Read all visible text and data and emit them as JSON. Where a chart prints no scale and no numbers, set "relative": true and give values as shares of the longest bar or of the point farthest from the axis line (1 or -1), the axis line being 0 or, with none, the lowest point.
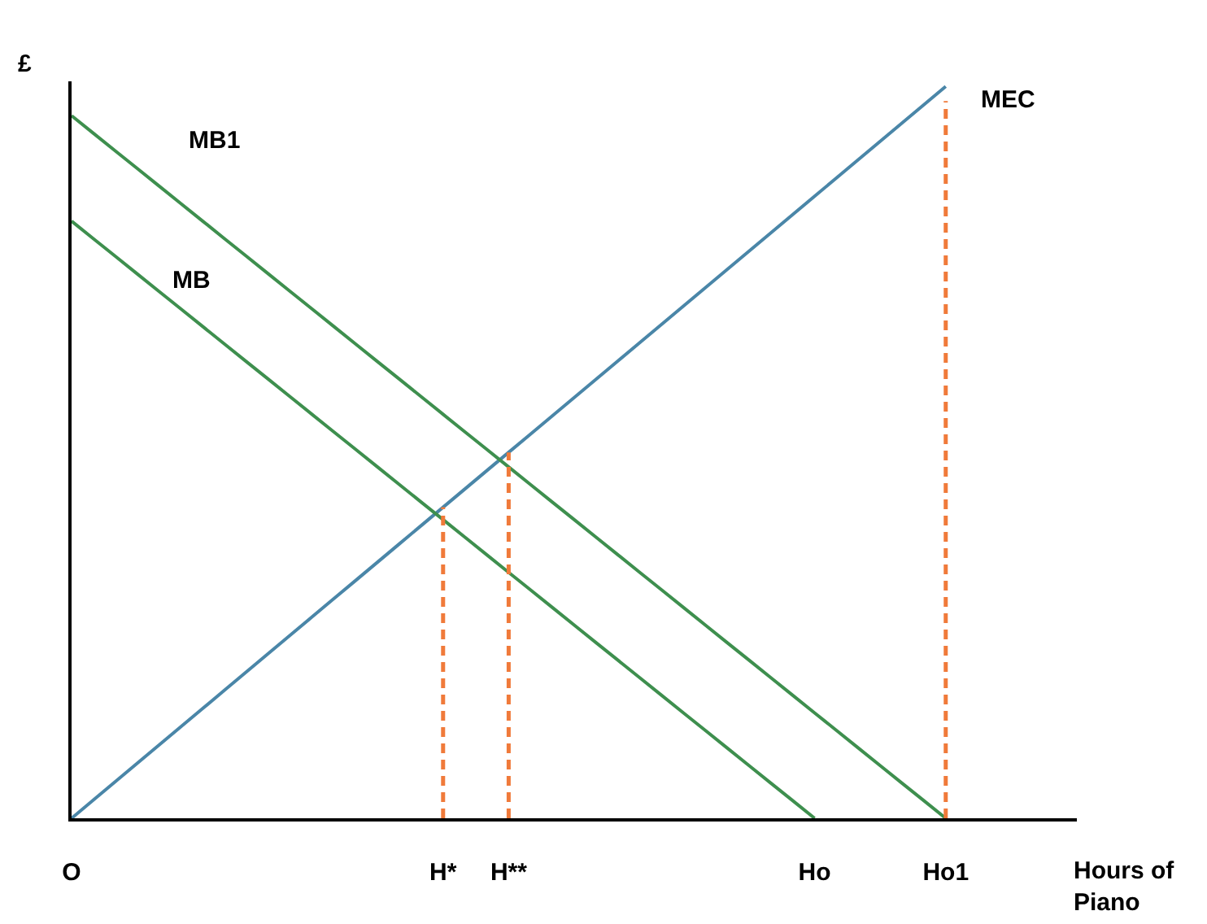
{
  "chart_data": {
    "type": "line",
    "relative": true,
    "xlabel": "Hours of Piano",
    "ylabel": "£",
    "legend": false,
    "categories": [
      "O",
      null,
      null,
      null,
      null,
      null,
      null,
      null,
      null,
      null,
      null,
      null,
      null,
      null,
      null,
      null,
      null,
      "H*",
      null,
      null,
      "H**",
      null,
      null,
      null,
      null,
      null,
      null,
      null,
      null,
      null,
      null,
      null,
      null,
      null,
      "Ho",
      null,
      null,
      null,
      null,
      null,
      "Ho1",
      null,
      null,
      null,
      null,
      null,
      null
    ],
    "series": [
      {
        "name": "MEC",
        "color": "#4a86a8",
        "values": [
          0,
          0.025,
          0.05,
          0.075,
          0.1,
          0.125,
          0.15,
          0.175,
          0.2,
          0.225,
          0.25,
          0.275,
          0.3,
          0.325,
          0.35,
          0.375,
          0.4,
          0.425,
          0.45,
          0.475,
          0.5,
          0.525,
          0.55,
          0.575,
          0.6,
          0.625,
          0.65,
          0.675,
          0.7,
          0.725,
          0.75,
          0.775,
          0.8,
          0.825,
          0.85,
          0.875,
          0.9,
          0.925,
          0.95,
          0.975,
          1.0,
          null,
          null,
          null,
          null,
          null,
          null
        ]
      },
      {
        "name": "MB1",
        "color": "#3e8f4e",
        "values": [
          0.96,
          0.936,
          0.912,
          0.888,
          0.864,
          0.84,
          0.816,
          0.792,
          0.768,
          0.744,
          0.72,
          0.696,
          0.672,
          0.648,
          0.624,
          0.6,
          0.576,
          0.552,
          0.528,
          0.504,
          0.48,
          0.456,
          0.432,
          0.408,
          0.384,
          0.36,
          0.336,
          0.312,
          0.288,
          0.264,
          0.24,
          0.216,
          0.192,
          0.168,
          0.144,
          0.12,
          0.096,
          0.072,
          0.048,
          0.024,
          0,
          null,
          null,
          null,
          null,
          null,
          null
        ]
      },
      {
        "name": "MB",
        "color": "#3e8f4e",
        "values": [
          0.816,
          0.792,
          0.768,
          0.744,
          0.72,
          0.696,
          0.672,
          0.648,
          0.624,
          0.6,
          0.576,
          0.552,
          0.528,
          0.504,
          0.48,
          0.456,
          0.432,
          0.408,
          0.384,
          0.36,
          0.336,
          0.312,
          0.288,
          0.264,
          0.24,
          0.216,
          0.192,
          0.168,
          0.144,
          0.12,
          0.096,
          0.072,
          0.048,
          0.024,
          0,
          null,
          null,
          null,
          null,
          null,
          null,
          null,
          null,
          null,
          null,
          null,
          null
        ]
      },
      {
        "color": "#f07a3a",
        "line_style": "dashed",
        "x": [
          "H*",
          "H*"
        ],
        "values": [
          0,
          0.425
        ]
      },
      {
        "color": "#f07a3a",
        "line_style": "dashed",
        "x": [
          "H**",
          "H**"
        ],
        "values": [
          0,
          0.5
        ]
      },
      {
        "color": "#f07a3a",
        "line_style": "dashed",
        "x": [
          "Ho1",
          "Ho1"
        ],
        "values": [
          0,
          0.98
        ]
      }
    ]
  }
}
